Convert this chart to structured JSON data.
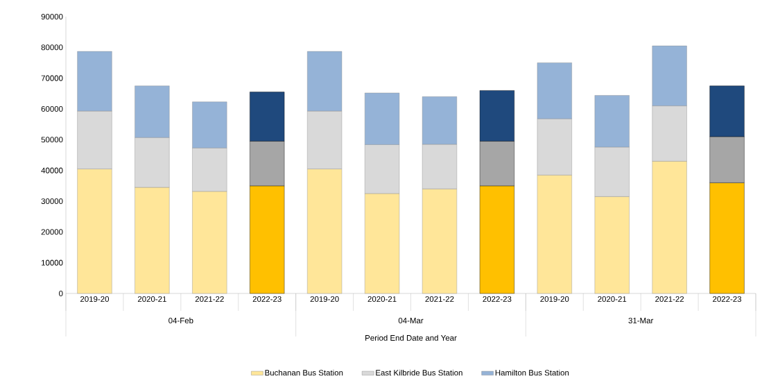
{
  "chart_data": {
    "type": "bar",
    "stacked": true,
    "xlabel": "Period End Date and Year",
    "categories": [
      "2019-20",
      "2020-21",
      "2021-22",
      "2022-23",
      "2019-20",
      "2020-21",
      "2021-22",
      "2022-23",
      "2019-20",
      "2020-21",
      "2021-22",
      "2022-23"
    ],
    "annotations": [
      "04-Feb",
      "04-Mar",
      "31-Mar"
    ],
    "series": [
      {
        "name": "Buchanan Bus Station",
        "color": "#ffe699",
        "colors": [
          "#ffe699",
          "#ffe699",
          "#ffe699",
          "#ffc000",
          "#ffe699",
          "#ffe699",
          "#ffe699",
          "#ffc000",
          "#ffe699",
          "#ffe699",
          "#ffe699",
          "#ffc000"
        ],
        "values": [
          40500,
          34500,
          33200,
          35000,
          40500,
          32500,
          34000,
          35000,
          38500,
          31500,
          43000,
          36000
        ]
      },
      {
        "name": "East Kilbride Bus Station",
        "color": "#d9d9d9",
        "colors": [
          "#d9d9d9",
          "#d9d9d9",
          "#d9d9d9",
          "#a6a6a6",
          "#d9d9d9",
          "#d9d9d9",
          "#d9d9d9",
          "#a6a6a6",
          "#d9d9d9",
          "#d9d9d9",
          "#d9d9d9",
          "#a6a6a6"
        ],
        "values": [
          18800,
          16200,
          14100,
          14500,
          18800,
          15900,
          14500,
          14500,
          18300,
          16100,
          18000,
          15000
        ]
      },
      {
        "name": "Hamilton Bus Station",
        "color": "#95b3d7",
        "colors": [
          "#95b3d7",
          "#95b3d7",
          "#95b3d7",
          "#1f497d",
          "#95b3d7",
          "#95b3d7",
          "#95b3d7",
          "#1f497d",
          "#95b3d7",
          "#95b3d7",
          "#95b3d7",
          "#1f497d"
        ],
        "values": [
          19400,
          16800,
          15000,
          16000,
          19400,
          16800,
          15500,
          16500,
          18200,
          16800,
          19500,
          16500
        ]
      }
    ],
    "ylim": [
      0,
      90000
    ],
    "yticks": [
      0,
      10000,
      20000,
      30000,
      40000,
      50000,
      60000,
      70000,
      80000,
      90000
    ],
    "grid": false,
    "legend": "bottom"
  }
}
